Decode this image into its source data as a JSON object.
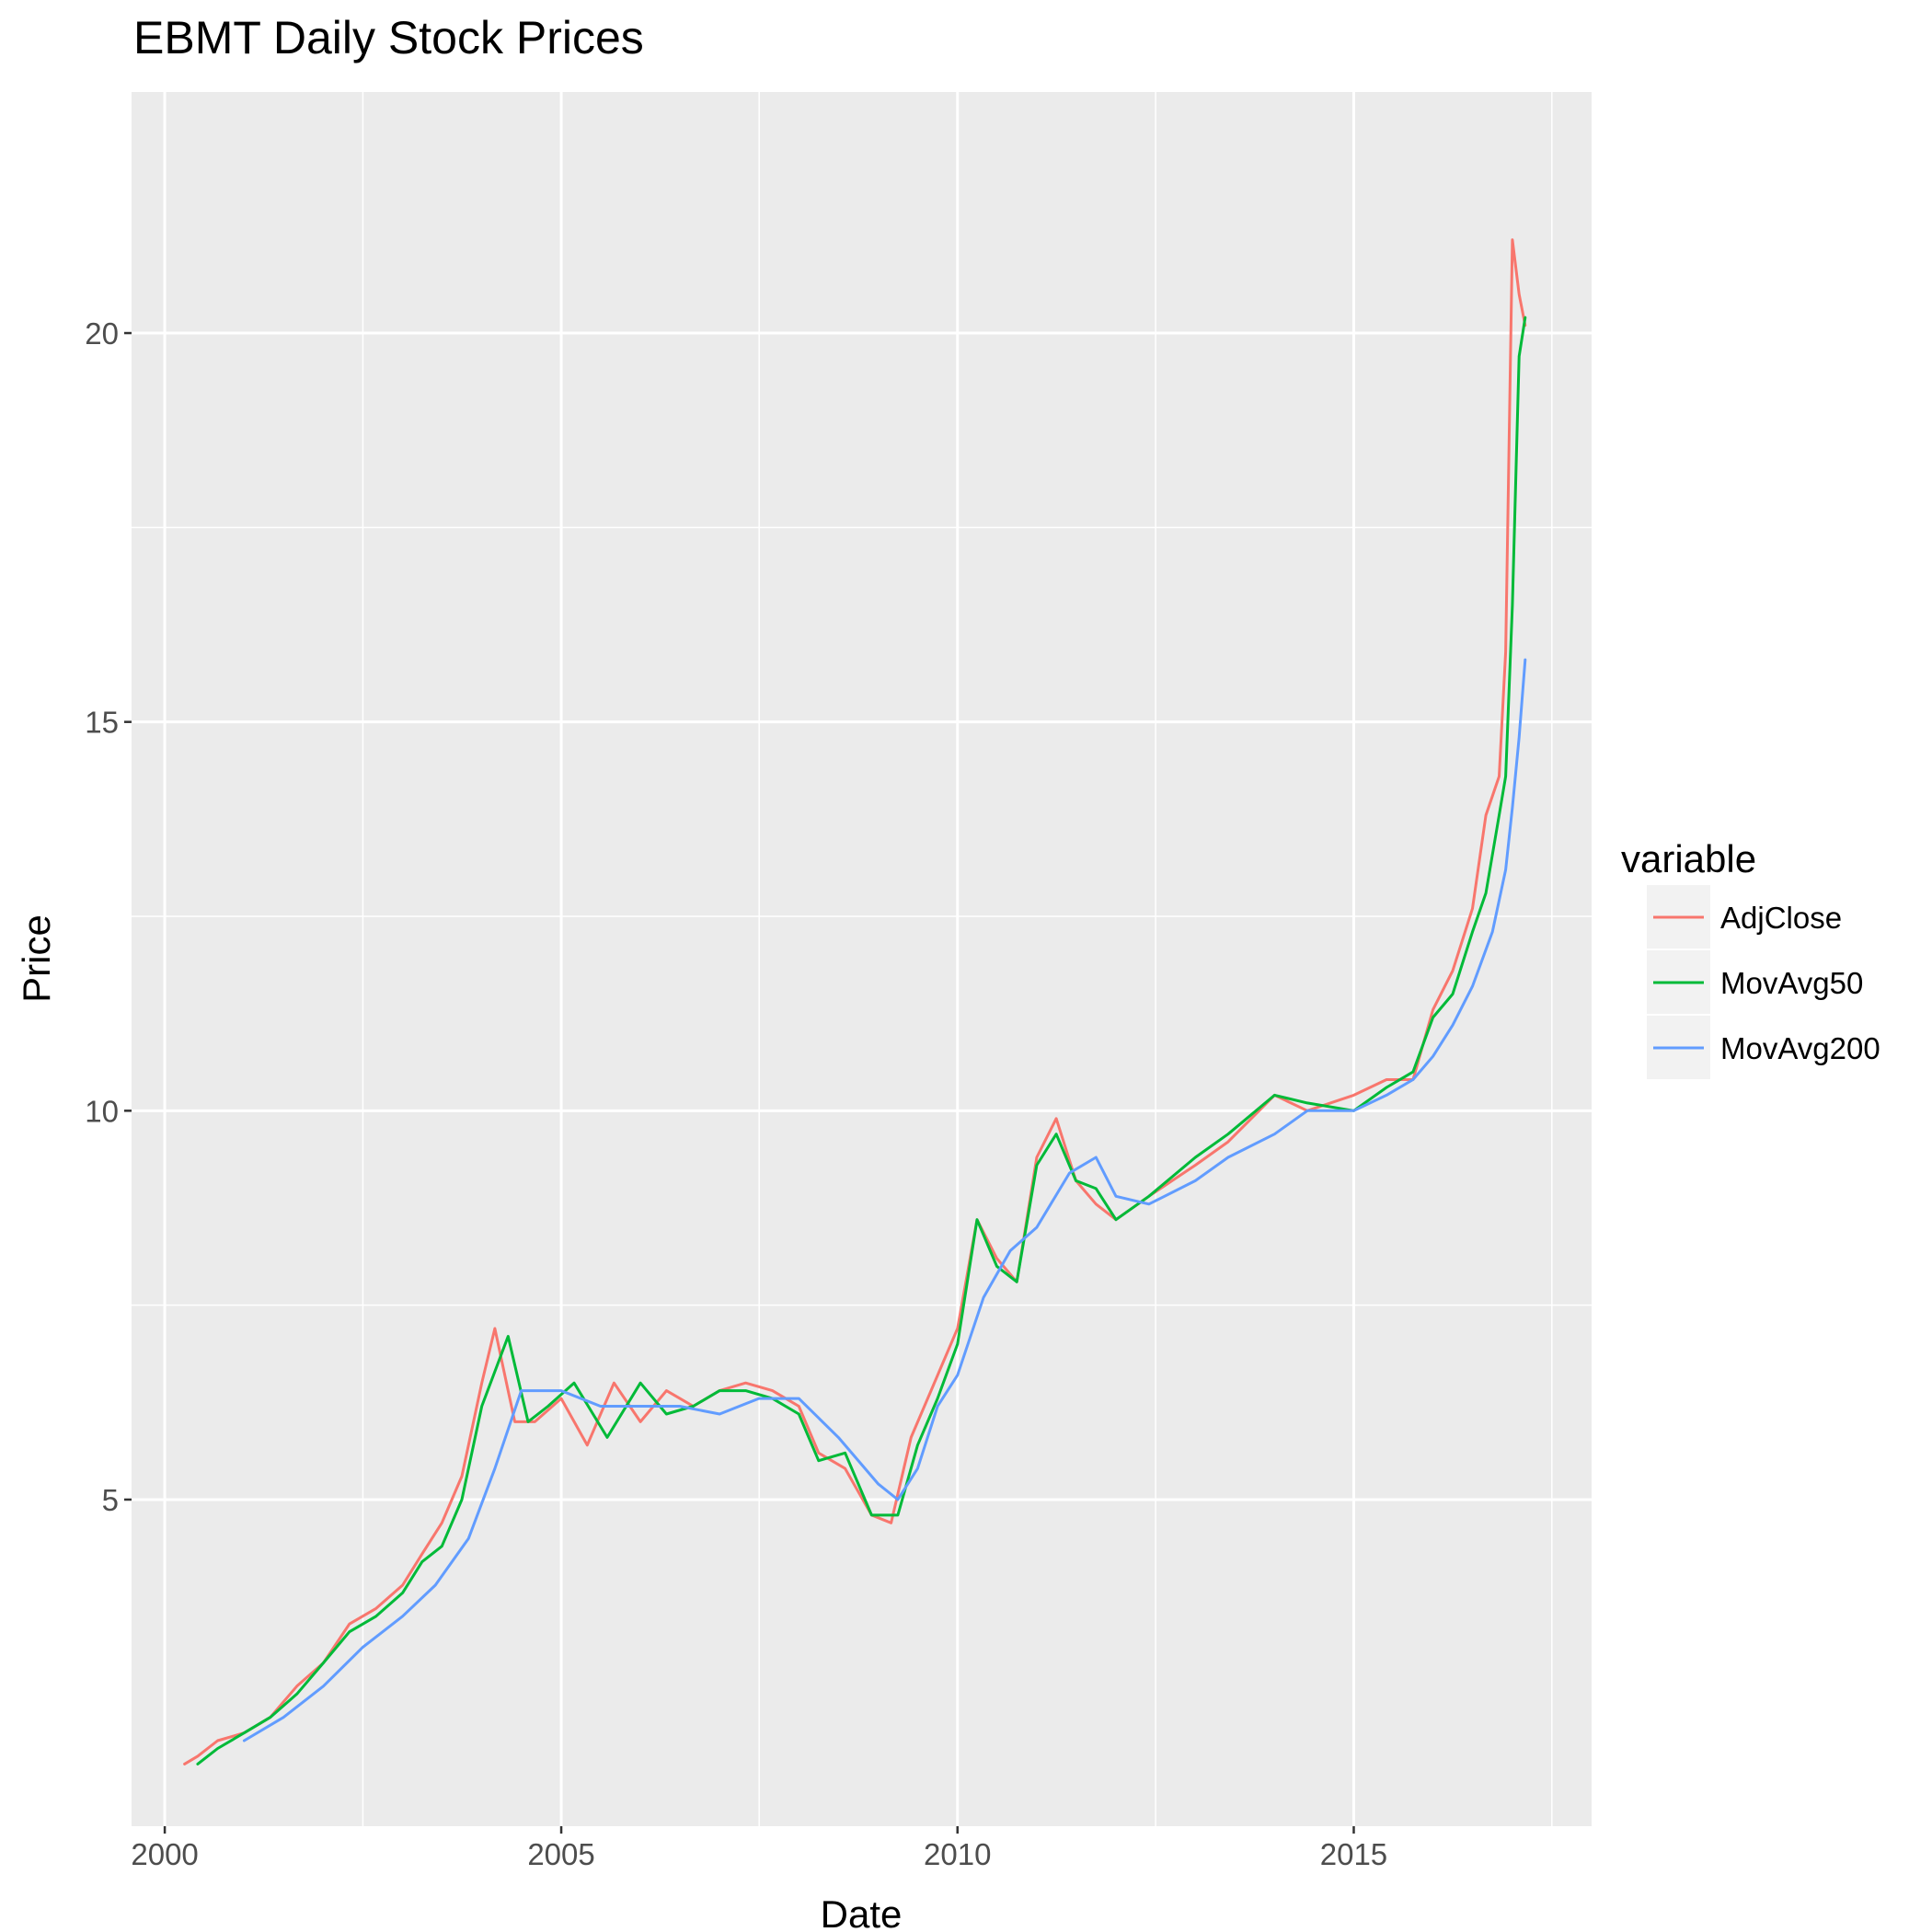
{
  "chart_data": {
    "type": "line",
    "title": "EBMT Daily Stock Prices",
    "xlabel": "Date",
    "ylabel": "Price",
    "x_type": "date",
    "xlim": [
      "1999-08-01",
      "2018-01-01"
    ],
    "ylim": [
      0.8,
      23.1
    ],
    "x_ticks": [
      {
        "date": "2000-01-01",
        "label": "2000"
      },
      {
        "date": "2005-01-01",
        "label": "2005"
      },
      {
        "date": "2010-01-01",
        "label": "2010"
      },
      {
        "date": "2015-01-01",
        "label": "2015"
      }
    ],
    "y_ticks": [
      5,
      10,
      15,
      20
    ],
    "grid": true,
    "legend": {
      "title": "variable",
      "position": "right"
    },
    "series": [
      {
        "name": "AdjClose",
        "color": "#F8766D",
        "x": [
          "2000-04-01",
          "2000-06-01",
          "2000-09-01",
          "2001-01-01",
          "2001-05-01",
          "2001-09-01",
          "2002-01-01",
          "2002-05-01",
          "2002-09-01",
          "2003-01-01",
          "2003-04-01",
          "2003-07-01",
          "2003-10-01",
          "2004-01-01",
          "2004-03-01",
          "2004-05-01",
          "2004-06-01",
          "2004-09-01",
          "2005-01-01",
          "2005-05-01",
          "2005-09-01",
          "2006-01-01",
          "2006-05-01",
          "2006-09-01",
          "2007-01-01",
          "2007-05-01",
          "2007-09-01",
          "2008-01-01",
          "2008-04-01",
          "2008-08-01",
          "2008-12-01",
          "2009-03-01",
          "2009-06-01",
          "2009-09-01",
          "2010-01-01",
          "2010-04-01",
          "2010-07-01",
          "2010-10-01",
          "2011-01-01",
          "2011-04-01",
          "2011-07-01",
          "2011-10-01",
          "2012-01-01",
          "2012-06-01",
          "2013-01-01",
          "2013-06-01",
          "2014-01-01",
          "2014-06-01",
          "2015-01-01",
          "2015-06-01",
          "2015-10-01",
          "2016-01-01",
          "2016-04-01",
          "2016-07-01",
          "2016-09-01",
          "2016-11-01",
          "2016-12-01",
          "2017-01-01",
          "2017-02-01",
          "2017-03-01"
        ],
        "values": [
          1.6,
          1.7,
          1.9,
          2.0,
          2.2,
          2.6,
          2.9,
          3.4,
          3.6,
          3.9,
          4.3,
          4.7,
          5.3,
          6.5,
          7.2,
          6.4,
          6.0,
          6.0,
          6.3,
          5.7,
          6.5,
          6.0,
          6.4,
          6.2,
          6.4,
          6.5,
          6.4,
          6.2,
          5.6,
          5.4,
          4.8,
          4.7,
          5.8,
          6.4,
          7.2,
          8.6,
          8.1,
          7.8,
          9.4,
          9.9,
          9.1,
          8.8,
          8.6,
          8.9,
          9.3,
          9.6,
          10.2,
          10.0,
          10.2,
          10.4,
          10.4,
          11.3,
          11.8,
          12.6,
          13.8,
          14.3,
          15.9,
          21.2,
          20.5,
          20.1
        ]
      },
      {
        "name": "MovAvg50",
        "color": "#00BA38",
        "x": [
          "2000-06-01",
          "2000-09-01",
          "2001-01-01",
          "2001-05-01",
          "2001-09-01",
          "2002-01-01",
          "2002-05-01",
          "2002-09-01",
          "2003-01-01",
          "2003-04-01",
          "2003-07-01",
          "2003-10-01",
          "2004-01-01",
          "2004-05-01",
          "2004-08-01",
          "2004-11-01",
          "2005-03-01",
          "2005-08-01",
          "2006-01-01",
          "2006-05-01",
          "2006-09-01",
          "2007-01-01",
          "2007-05-01",
          "2007-09-01",
          "2008-01-01",
          "2008-04-01",
          "2008-08-01",
          "2008-12-01",
          "2009-04-01",
          "2009-07-01",
          "2009-10-01",
          "2010-01-01",
          "2010-04-01",
          "2010-07-01",
          "2010-10-01",
          "2011-01-01",
          "2011-04-01",
          "2011-07-01",
          "2011-10-01",
          "2012-01-01",
          "2012-06-01",
          "2013-01-01",
          "2013-06-01",
          "2014-01-01",
          "2014-06-01",
          "2015-01-01",
          "2015-06-01",
          "2015-10-01",
          "2016-01-01",
          "2016-04-01",
          "2016-07-01",
          "2016-09-01",
          "2016-11-01",
          "2016-12-01",
          "2017-01-01",
          "2017-02-01",
          "2017-03-01"
        ],
        "values": [
          1.6,
          1.8,
          2.0,
          2.2,
          2.5,
          2.9,
          3.3,
          3.5,
          3.8,
          4.2,
          4.4,
          5.0,
          6.2,
          7.1,
          6.0,
          6.2,
          6.5,
          5.8,
          6.5,
          6.1,
          6.2,
          6.4,
          6.4,
          6.3,
          6.1,
          5.5,
          5.6,
          4.8,
          4.8,
          5.7,
          6.3,
          7.0,
          8.6,
          8.0,
          7.8,
          9.3,
          9.7,
          9.1,
          9.0,
          8.6,
          8.9,
          9.4,
          9.7,
          10.2,
          10.1,
          10.0,
          10.3,
          10.5,
          11.2,
          11.5,
          12.3,
          12.8,
          13.8,
          14.3,
          16.5,
          19.7,
          20.2
        ]
      },
      {
        "name": "MovAvg200",
        "color": "#619CFF",
        "x": [
          "2001-01-01",
          "2001-07-01",
          "2002-01-01",
          "2002-07-01",
          "2003-01-01",
          "2003-06-01",
          "2003-11-01",
          "2004-03-01",
          "2004-07-01",
          "2005-01-01",
          "2005-07-01",
          "2006-01-01",
          "2006-07-01",
          "2007-01-01",
          "2007-07-01",
          "2008-01-01",
          "2008-07-01",
          "2009-01-01",
          "2009-04-01",
          "2009-07-01",
          "2009-10-01",
          "2010-01-01",
          "2010-05-01",
          "2010-09-01",
          "2011-01-01",
          "2011-06-01",
          "2011-10-01",
          "2012-01-01",
          "2012-06-01",
          "2013-01-01",
          "2013-06-01",
          "2014-01-01",
          "2014-06-01",
          "2015-01-01",
          "2015-06-01",
          "2015-10-01",
          "2016-01-01",
          "2016-04-01",
          "2016-07-01",
          "2016-10-01",
          "2016-12-01",
          "2017-01-01",
          "2017-02-01",
          "2017-03-01"
        ],
        "values": [
          1.9,
          2.2,
          2.6,
          3.1,
          3.5,
          3.9,
          4.5,
          5.4,
          6.4,
          6.4,
          6.2,
          6.2,
          6.2,
          6.1,
          6.3,
          6.3,
          5.8,
          5.2,
          5.0,
          5.4,
          6.2,
          6.6,
          7.6,
          8.2,
          8.5,
          9.2,
          9.4,
          8.9,
          8.8,
          9.1,
          9.4,
          9.7,
          10.0,
          10.0,
          10.2,
          10.4,
          10.7,
          11.1,
          11.6,
          12.3,
          13.1,
          13.9,
          14.8,
          15.8
        ]
      }
    ]
  }
}
